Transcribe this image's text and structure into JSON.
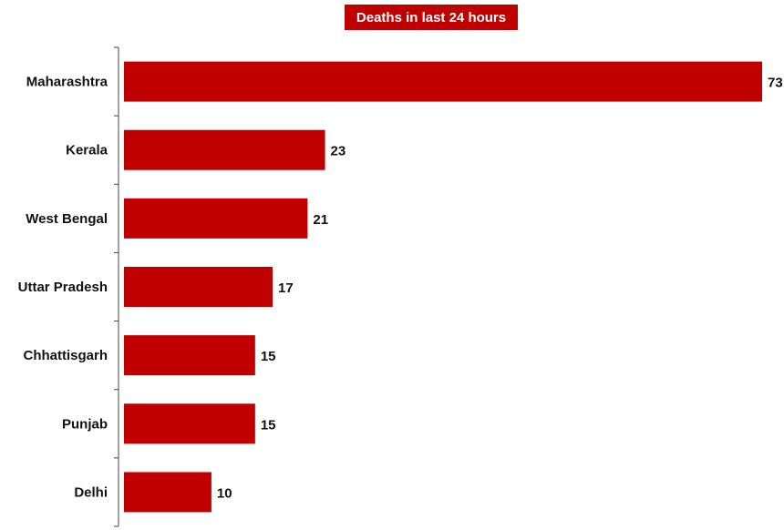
{
  "chart_data": {
    "type": "bar",
    "orientation": "horizontal",
    "title": "Deaths in last 24 hours",
    "categories": [
      "Maharashtra",
      "Kerala",
      "West Bengal",
      "Uttar Pradesh",
      "Chhattisgarh",
      "Punjab",
      "Delhi"
    ],
    "values": [
      73,
      23,
      21,
      17,
      15,
      15,
      10
    ],
    "data_labels": [
      "73",
      "23",
      "21",
      "17",
      "15",
      "15",
      "10"
    ],
    "xlim": [
      0,
      73
    ],
    "grid": false,
    "legend": "none",
    "colors": {
      "bar": "#c00000",
      "title_background": "#c00000",
      "title_text": "#ffffff"
    }
  }
}
